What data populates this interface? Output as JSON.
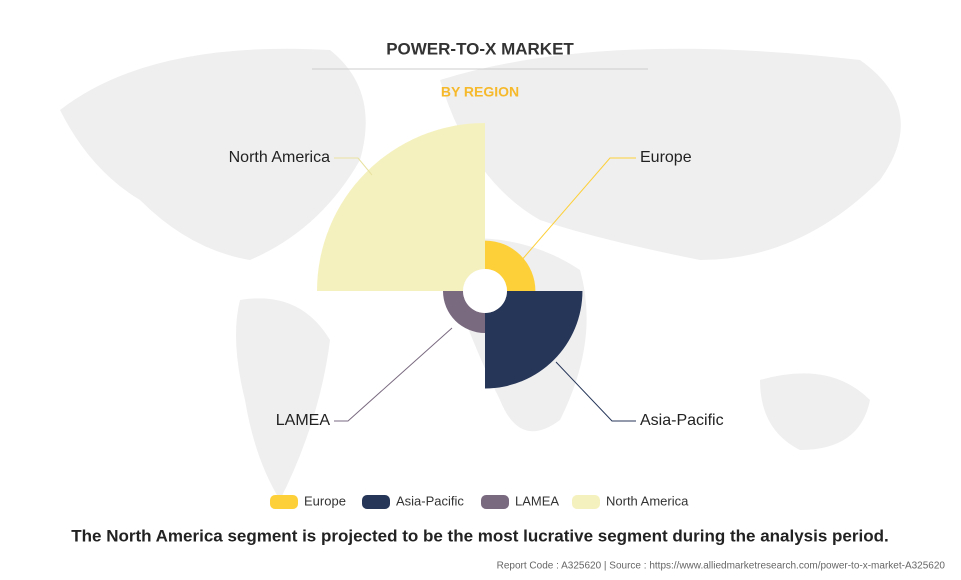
{
  "chart_data": {
    "type": "polar-area",
    "title": "POWER-TO-X MARKET",
    "subtitle": "BY REGION",
    "categories": [
      "Europe",
      "Asia-Pacific",
      "LAMEA",
      "North America"
    ],
    "values": [
      30,
      58,
      25,
      100
    ],
    "colors": [
      "#fdd03a",
      "#263659",
      "#7a6a80",
      "#f5f1bf"
    ],
    "caption": "The North America segment is projected to be the most lucrative segment during the analysis period.",
    "source": "Report Code : A325620  |  Source : https://www.alliedmarketresearch.com/power-to-x-market-A325620"
  }
}
